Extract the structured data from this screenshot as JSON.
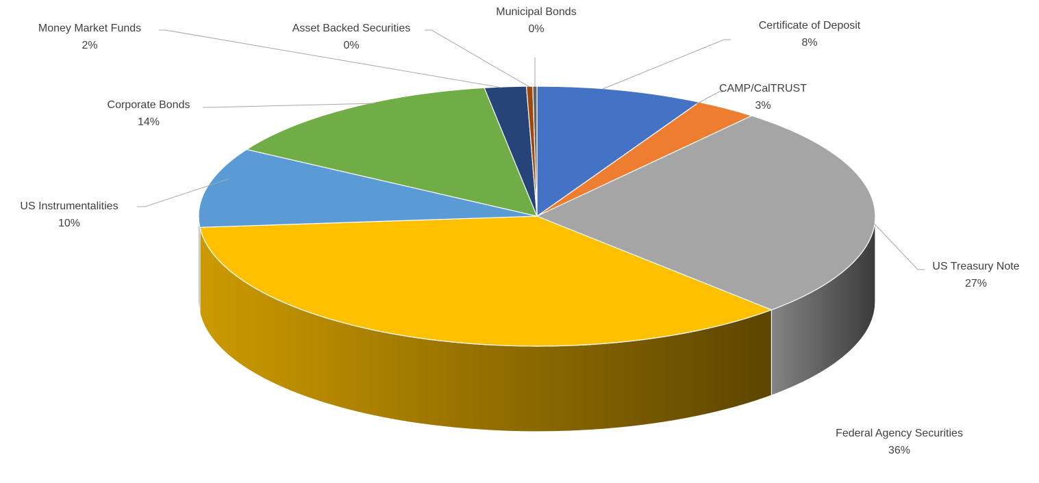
{
  "chart_data": {
    "type": "pie",
    "style": "3d",
    "title": "",
    "slices": [
      {
        "label": "Certificate of Deposit",
        "value": 8,
        "percent_label": "8%",
        "color": "#4472c4"
      },
      {
        "label": "CAMP/CalTRUST",
        "value": 3,
        "percent_label": "3%",
        "color": "#ed7d31"
      },
      {
        "label": "US Treasury Note",
        "value": 27,
        "percent_label": "27%",
        "color": "#a5a5a5"
      },
      {
        "label": "Federal Agency Securities",
        "value": 36,
        "percent_label": "36%",
        "color": "#ffc000"
      },
      {
        "label": "US Instrumentalities",
        "value": 10,
        "percent_label": "10%",
        "color": "#5b9bd5"
      },
      {
        "label": "Corporate Bonds",
        "value": 14,
        "percent_label": "14%",
        "color": "#70ad47"
      },
      {
        "label": "Money Market Funds",
        "value": 2,
        "percent_label": "2%",
        "color": "#264478"
      },
      {
        "label": "Asset Backed Securities",
        "value": 0.3,
        "percent_label": "0%",
        "color": "#9e480e"
      },
      {
        "label": "Municipal Bonds",
        "value": 0.2,
        "percent_label": "0%",
        "color": "#636363"
      }
    ]
  }
}
